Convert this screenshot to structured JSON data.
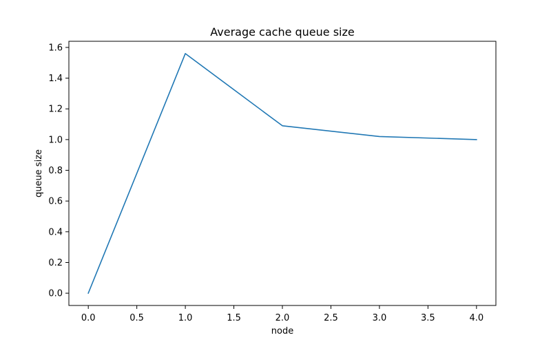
{
  "chart_data": {
    "type": "line",
    "title": "Average cache queue size",
    "xlabel": "node",
    "ylabel": "queue size",
    "xlim": [
      -0.2,
      4.2
    ],
    "ylim": [
      -0.08,
      1.64
    ],
    "xticks": [
      0.0,
      0.5,
      1.0,
      1.5,
      2.0,
      2.5,
      3.0,
      3.5,
      4.0
    ],
    "xtick_labels": [
      "0.0",
      "0.5",
      "1.0",
      "1.5",
      "2.0",
      "2.5",
      "3.0",
      "3.5",
      "4.0"
    ],
    "yticks": [
      0.0,
      0.2,
      0.4,
      0.6,
      0.8,
      1.0,
      1.2,
      1.4,
      1.6
    ],
    "ytick_labels": [
      "0.0",
      "0.2",
      "0.4",
      "0.6",
      "0.8",
      "1.0",
      "1.2",
      "1.4",
      "1.6"
    ],
    "grid": false,
    "legend": false,
    "series": [
      {
        "color": "#1f77b4",
        "x": [
          0,
          1,
          2,
          3,
          4
        ],
        "y": [
          0.0,
          1.56,
          1.09,
          1.02,
          1.0
        ]
      }
    ]
  }
}
